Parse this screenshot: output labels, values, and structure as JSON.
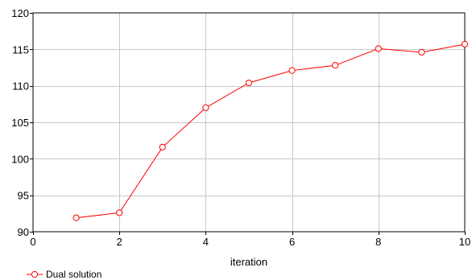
{
  "chart_data": {
    "type": "line",
    "title": "",
    "xlabel": "iteration",
    "ylabel": "",
    "xlim": [
      0,
      10
    ],
    "ylim": [
      90,
      120
    ],
    "x_ticks": [
      0,
      2,
      4,
      6,
      8,
      10
    ],
    "y_ticks": [
      90,
      95,
      100,
      105,
      110,
      115,
      120
    ],
    "grid": true,
    "legend_position": "bottom-left",
    "series": [
      {
        "name": "Dual solution",
        "color": "#ff0000",
        "marker": "open-circle",
        "x": [
          1,
          2,
          3,
          4,
          5,
          6,
          7,
          8,
          9,
          10
        ],
        "y": [
          91.9,
          92.6,
          101.6,
          107.0,
          110.4,
          112.1,
          112.8,
          115.1,
          114.6,
          115.7
        ]
      }
    ]
  }
}
